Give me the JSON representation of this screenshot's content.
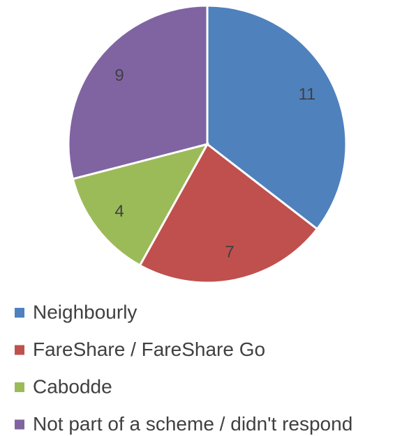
{
  "chart_data": {
    "type": "pie",
    "categories": [
      "Neighbourly",
      "FareShare / FareShare Go",
      "Cabodde",
      "Not part of a scheme / didn't respond"
    ],
    "values": [
      11,
      7,
      4,
      9
    ],
    "colors": [
      "#4f81bd",
      "#c0504d",
      "#9bbb59",
      "#8064a2"
    ],
    "legend": "bottom"
  }
}
